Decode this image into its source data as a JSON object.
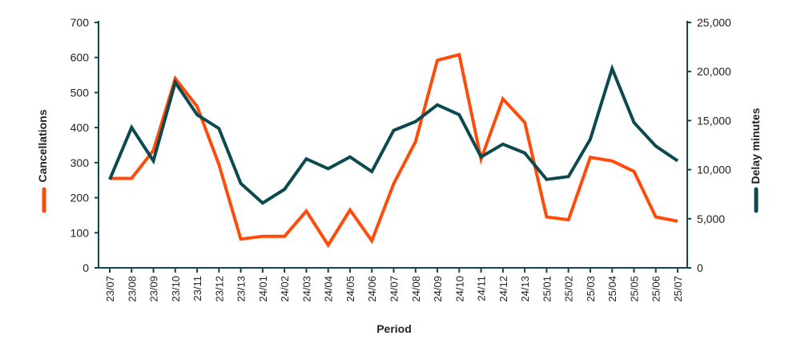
{
  "chart_data": {
    "type": "line",
    "title": "",
    "xlabel": "Period",
    "ylabel": "Cancellations",
    "y2label": "Delay minutes",
    "ylim": [
      0,
      700
    ],
    "y2lim": [
      0,
      25000
    ],
    "yticks": [
      "0",
      "100",
      "200",
      "300",
      "400",
      "500",
      "600",
      "700"
    ],
    "y2ticks": [
      "0",
      "5,000",
      "10,000",
      "15,000",
      "20,000",
      "25,000"
    ],
    "grid": false,
    "legend_placement": "beside axis titles",
    "categories": [
      "23/07",
      "23/08",
      "23/09",
      "23/10",
      "23/11",
      "23/12",
      "23/13",
      "24/01",
      "24/02",
      "24/03",
      "24/04",
      "24/05",
      "24/06",
      "24/07",
      "24/08",
      "24/09",
      "24/10",
      "24/11",
      "24/12",
      "24/13",
      "25/01",
      "25/02",
      "25/03",
      "25/04",
      "25/05",
      "25/06",
      "25/07"
    ],
    "series": [
      {
        "name": "Cancellations",
        "axis": "left",
        "color": "#FF4C0A",
        "values": [
          255,
          255,
          335,
          540,
          460,
          295,
          82,
          90,
          90,
          162,
          65,
          165,
          77,
          240,
          360,
          592,
          608,
          310,
          482,
          415,
          145,
          137,
          315,
          305,
          275,
          145,
          133
        ]
      },
      {
        "name": "Delay minutes",
        "axis": "right",
        "color": "#0D4A4F",
        "values": [
          9000,
          14300,
          10900,
          18900,
          15600,
          14200,
          8600,
          6600,
          8000,
          11100,
          10100,
          11300,
          9800,
          14000,
          14900,
          16600,
          15600,
          11300,
          12600,
          11700,
          9000,
          9300,
          13100,
          20300,
          14800,
          12400,
          10900
        ]
      }
    ]
  }
}
